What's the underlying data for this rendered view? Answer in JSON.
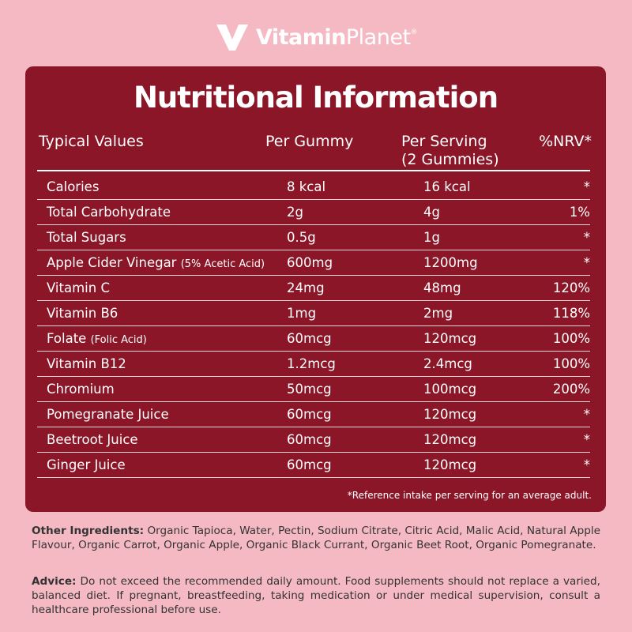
{
  "brand": {
    "name_bold": "Vitamin",
    "name_light": "Planet",
    "registered": "®"
  },
  "panel": {
    "title": "Nutritional Information",
    "headers": {
      "typical": "Typical Values",
      "per_gummy": "Per Gummy",
      "per_serving_line1": "Per Serving",
      "per_serving_line2": "(2 Gummies)",
      "nrv": "%NRV*"
    },
    "rows": [
      {
        "name": "Calories",
        "sub": "",
        "per_gummy": "8 kcal",
        "per_serving": "16 kcal",
        "nrv": "*"
      },
      {
        "name": "Total Carbohydrate",
        "sub": "",
        "per_gummy": "2g",
        "per_serving": "4g",
        "nrv": "1%"
      },
      {
        "name": "Total Sugars",
        "sub": "",
        "per_gummy": "0.5g",
        "per_serving": "1g",
        "nrv": "*"
      },
      {
        "name": "Apple Cider Vinegar",
        "sub": "(5% Acetic Acid)",
        "per_gummy": "600mg",
        "per_serving": "1200mg",
        "nrv": "*"
      },
      {
        "name": "Vitamin C",
        "sub": "",
        "per_gummy": "24mg",
        "per_serving": "48mg",
        "nrv": "120%"
      },
      {
        "name": "Vitamin B6",
        "sub": "",
        "per_gummy": "1mg",
        "per_serving": "2mg",
        "nrv": "118%"
      },
      {
        "name": "Folate",
        "sub": "(Folic Acid)",
        "per_gummy": "60mcg",
        "per_serving": "120mcg",
        "nrv": "100%"
      },
      {
        "name": "Vitamin B12",
        "sub": "",
        "per_gummy": "1.2mcg",
        "per_serving": "2.4mcg",
        "nrv": "100%"
      },
      {
        "name": "Chromium",
        "sub": "",
        "per_gummy": "50mcg",
        "per_serving": "100mcg",
        "nrv": "200%"
      },
      {
        "name": "Pomegranate Juice",
        "sub": "",
        "per_gummy": "60mcg",
        "per_serving": "120mcg",
        "nrv": "*"
      },
      {
        "name": "Beetroot Juice",
        "sub": "",
        "per_gummy": "60mcg",
        "per_serving": "120mcg",
        "nrv": "*"
      },
      {
        "name": "Ginger Juice",
        "sub": "",
        "per_gummy": "60mcg",
        "per_serving": "120mcg",
        "nrv": "*"
      }
    ],
    "footnote": "*Reference intake per serving for an average adult."
  },
  "ingredients": {
    "label": "Other Ingredients:",
    "text": " Organic Tapioca, Water, Pectin, Sodium Citrate, Citric Acid, Malic Acid, Natural Apple Flavour, Organic Carrot, Organic Apple, Organic Black Currant, Organic Beet Root, Organic Pomegranate."
  },
  "advice": {
    "label": "Advice:",
    "text": " Do not exceed the recommended daily amount. Food supplements should not replace a varied, balanced diet. If pregnant, breastfeeding, taking medication or under medical supervision, consult a healthcare professional before use."
  },
  "colors": {
    "background": "#f4b9c2",
    "panel": "#8a1628",
    "text_dark": "#333333"
  }
}
